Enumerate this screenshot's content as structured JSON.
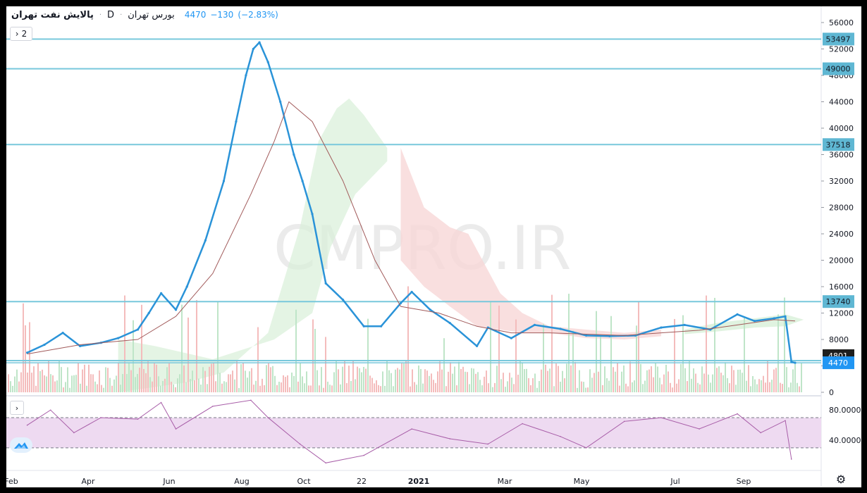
{
  "header": {
    "symbol_name": "پالایش نفت تهران",
    "interval": "D",
    "exchange": "بورس تهران",
    "last_price": "4470",
    "change": "−130",
    "change_pct": "(−2.83%)"
  },
  "collapse_button": {
    "label": "2"
  },
  "watermark": "CMPRO.IR",
  "colors": {
    "price_line": "#2a93d8",
    "ma_line": "#a15a5a",
    "level_line": "#78c8dc",
    "level_tag": "#5fb7d3",
    "rsi_line": "#a85ea8",
    "rsi_band": "#eedaf1",
    "cloud_green": "#d8f0d8",
    "cloud_red": "#f8d7d7",
    "vol_green": "#bfe5c8",
    "vol_red": "#f4bcbc"
  },
  "chart_data": [
    {
      "type": "line",
      "panel": "price",
      "title": "",
      "y_axis": {
        "ticks": [
          0,
          4000,
          8000,
          12000,
          16000,
          20000,
          24000,
          28000,
          32000,
          36000,
          40000,
          44000,
          48000,
          52000,
          56000
        ],
        "range": [
          0,
          57500
        ]
      },
      "x_axis": {
        "tick_labels": [
          "Feb",
          "Apr",
          "Jun",
          "Aug",
          "Oct",
          "22",
          "2021",
          "Mar",
          "May",
          "Jul",
          "Sep"
        ]
      },
      "horizontal_levels": [
        53497,
        49000,
        37518,
        13740,
        4801,
        4470
      ],
      "last_value": 4470,
      "series": [
        {
          "name": "",
          "style": "price",
          "points": [
            [
              "2020-02-01",
              6000
            ],
            [
              "2020-02-15",
              7200
            ],
            [
              "2020-03-01",
              9000
            ],
            [
              "2020-03-15",
              7000
            ],
            [
              "2020-04-01",
              7500
            ],
            [
              "2020-04-15",
              8200
            ],
            [
              "2020-05-01",
              9500
            ],
            [
              "2020-05-10",
              12000
            ],
            [
              "2020-05-20",
              15000
            ],
            [
              "2020-06-01",
              12500
            ],
            [
              "2020-06-10",
              16000
            ],
            [
              "2020-06-25",
              23000
            ],
            [
              "2020-07-10",
              32000
            ],
            [
              "2020-07-20",
              41000
            ],
            [
              "2020-07-28",
              48000
            ],
            [
              "2020-08-03",
              52000
            ],
            [
              "2020-08-08",
              53000
            ],
            [
              "2020-08-15",
              50000
            ],
            [
              "2020-08-25",
              44000
            ],
            [
              "2020-09-05",
              36000
            ],
            [
              "2020-09-12",
              32000
            ],
            [
              "2020-09-20",
              27000
            ],
            [
              "2020-10-01",
              16500
            ],
            [
              "2020-10-15",
              14000
            ],
            [
              "2020-11-01",
              10000
            ],
            [
              "2020-11-15",
              10000
            ],
            [
              "2020-12-01",
              13500
            ],
            [
              "2020-12-10",
              15200
            ],
            [
              "2020-12-25",
              12500
            ],
            [
              "2021-01-10",
              10500
            ],
            [
              "2021-02-01",
              7000
            ],
            [
              "2021-02-10",
              9800
            ],
            [
              "2021-03-01",
              8200
            ],
            [
              "2021-03-20",
              10200
            ],
            [
              "2021-04-10",
              9600
            ],
            [
              "2021-05-01",
              8600
            ],
            [
              "2021-05-20",
              8500
            ],
            [
              "2021-06-10",
              8600
            ],
            [
              "2021-07-01",
              9800
            ],
            [
              "2021-07-20",
              10200
            ],
            [
              "2021-08-10",
              9500
            ],
            [
              "2021-09-01",
              11800
            ],
            [
              "2021-09-15",
              10800
            ],
            [
              "2021-10-01",
              11200
            ],
            [
              "2021-10-10",
              11500
            ],
            [
              "2021-10-15",
              4600
            ],
            [
              "2021-10-18",
              4470
            ]
          ]
        },
        {
          "name": "",
          "style": "moving-average",
          "points": [
            [
              "2020-02-01",
              5800
            ],
            [
              "2020-03-15",
              7200
            ],
            [
              "2020-05-01",
              8000
            ],
            [
              "2020-06-01",
              11500
            ],
            [
              "2020-07-01",
              18000
            ],
            [
              "2020-08-01",
              30000
            ],
            [
              "2020-08-20",
              38000
            ],
            [
              "2020-09-01",
              44000
            ],
            [
              "2020-09-20",
              41000
            ],
            [
              "2020-10-15",
              32000
            ],
            [
              "2020-11-10",
              20000
            ],
            [
              "2020-12-01",
              13000
            ],
            [
              "2021-01-01",
              12000
            ],
            [
              "2021-02-01",
              10000
            ],
            [
              "2021-03-01",
              9000
            ],
            [
              "2021-04-01",
              9000
            ],
            [
              "2021-05-01",
              8800
            ],
            [
              "2021-06-01",
              8600
            ],
            [
              "2021-07-01",
              9000
            ],
            [
              "2021-08-01",
              9400
            ],
            [
              "2021-09-01",
              10200
            ],
            [
              "2021-10-01",
              11000
            ],
            [
              "2021-10-18",
              10800
            ]
          ]
        }
      ]
    },
    {
      "type": "line",
      "panel": "rsi",
      "title": "",
      "y_axis": {
        "ticks": [
          40,
          80
        ],
        "tick_labels": [
          "40.0000",
          "80.0000"
        ],
        "range": [
          0,
          100
        ]
      },
      "bands": [
        30,
        70
      ],
      "series": [
        {
          "name": "",
          "points": [
            [
              "2020-02-01",
              60
            ],
            [
              "2020-02-20",
              80
            ],
            [
              "2020-03-10",
              50
            ],
            [
              "2020-04-01",
              70
            ],
            [
              "2020-05-01",
              68
            ],
            [
              "2020-05-20",
              90
            ],
            [
              "2020-06-01",
              55
            ],
            [
              "2020-07-01",
              85
            ],
            [
              "2020-08-01",
              93
            ],
            [
              "2020-08-15",
              70
            ],
            [
              "2020-09-10",
              35
            ],
            [
              "2020-10-01",
              10
            ],
            [
              "2020-11-01",
              20
            ],
            [
              "2020-12-10",
              55
            ],
            [
              "2021-01-10",
              42
            ],
            [
              "2021-02-10",
              35
            ],
            [
              "2021-03-10",
              62
            ],
            [
              "2021-04-10",
              45
            ],
            [
              "2021-05-01",
              30
            ],
            [
              "2021-06-01",
              65
            ],
            [
              "2021-07-01",
              70
            ],
            [
              "2021-08-01",
              55
            ],
            [
              "2021-09-01",
              75
            ],
            [
              "2021-09-20",
              50
            ],
            [
              "2021-10-10",
              66
            ],
            [
              "2021-10-15",
              15
            ]
          ]
        }
      ]
    }
  ]
}
